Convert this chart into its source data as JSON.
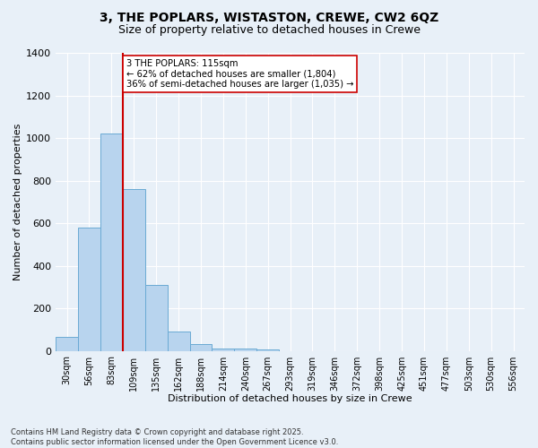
{
  "title1": "3, THE POPLARS, WISTASTON, CREWE, CW2 6QZ",
  "title2": "Size of property relative to detached houses in Crewe",
  "xlabel": "Distribution of detached houses by size in Crewe",
  "ylabel": "Number of detached properties",
  "categories": [
    "30sqm",
    "56sqm",
    "83sqm",
    "109sqm",
    "135sqm",
    "162sqm",
    "188sqm",
    "214sqm",
    "240sqm",
    "267sqm",
    "293sqm",
    "319sqm",
    "346sqm",
    "372sqm",
    "398sqm",
    "425sqm",
    "451sqm",
    "477sqm",
    "503sqm",
    "530sqm",
    "556sqm"
  ],
  "values": [
    65,
    580,
    1020,
    760,
    310,
    90,
    30,
    10,
    10,
    5,
    0,
    0,
    0,
    0,
    0,
    0,
    0,
    0,
    0,
    0,
    0
  ],
  "bar_color": "#b8d4ee",
  "bar_edgecolor": "#6aaad4",
  "vline_color": "#cc0000",
  "ylim": [
    0,
    1400
  ],
  "yticks": [
    0,
    200,
    400,
    600,
    800,
    1000,
    1200,
    1400
  ],
  "annotation_text": "3 THE POPLARS: 115sqm\n← 62% of detached houses are smaller (1,804)\n36% of semi-detached houses are larger (1,035) →",
  "annotation_box_color": "#ffffff",
  "annotation_box_edgecolor": "#cc0000",
  "footer": "Contains HM Land Registry data © Crown copyright and database right 2025.\nContains public sector information licensed under the Open Government Licence v3.0.",
  "bg_color": "#e8f0f8",
  "plot_bg_color": "#e8f0f8"
}
